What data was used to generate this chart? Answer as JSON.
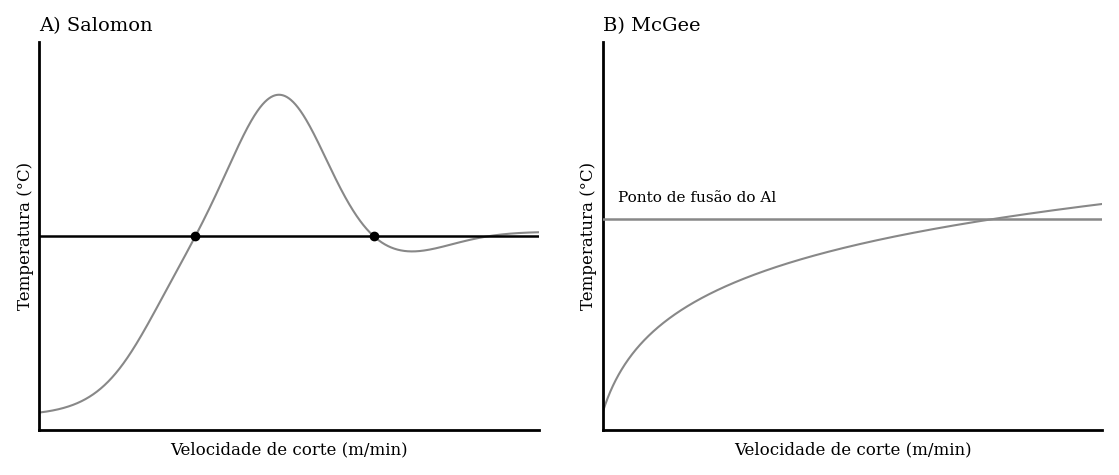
{
  "title_A": "A) Salomon",
  "title_B": "B) McGee",
  "xlabel": "Velocidade de corte (m/min)",
  "ylabel_A": "Temperatura (°C)",
  "ylabel_B": "Temperatura (°C)",
  "annotation_B": "Ponto de fusão do Al",
  "curve_color": "#888888",
  "hline_color_A": "#000000",
  "hline_color_B": "#888888",
  "dot_color": "#000000",
  "title_fontsize": 14,
  "label_fontsize": 12,
  "annotation_fontsize": 11,
  "bg_color": "#ffffff",
  "hline_A_y": 0.5,
  "hline_B_y": 0.52,
  "ylim_A": [
    -0.05,
    1.05
  ],
  "ylim_B": [
    -0.05,
    1.0
  ],
  "xlim": [
    0,
    10
  ]
}
